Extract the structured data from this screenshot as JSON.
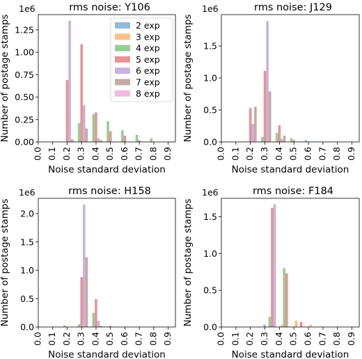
{
  "chart_data": [
    {
      "type": "bar",
      "title": "rms noise: Y106",
      "xlabel": "Noise standard deviation",
      "ylabel": "Number of postage stamps",
      "offset_label": "1e6",
      "xlim": [
        0.0,
        0.95
      ],
      "ylim": [
        0,
        1.42
      ],
      "xticks": [
        "0.0",
        "0.1",
        "0.2",
        "0.3",
        "0.4",
        "0.5",
        "0.6",
        "0.7",
        "0.8",
        "0.9"
      ],
      "yticks": [
        "0.00",
        "0.25",
        "0.50",
        "0.75",
        "1.00",
        "1.25"
      ],
      "legend_position": "upper right",
      "series": [
        {
          "name": "2 exp",
          "color": "#1f77b4",
          "bars": []
        },
        {
          "name": "3 exp",
          "color": "#ff7f0e",
          "bars": []
        },
        {
          "name": "4 exp",
          "color": "#2ca02c",
          "bars": [
            [
              0.3,
              0.21
            ],
            [
              0.4,
              0.31
            ],
            [
              0.5,
              0.23
            ],
            [
              0.6,
              0.13
            ],
            [
              0.7,
              0.08
            ],
            [
              0.8,
              0.04
            ]
          ]
        },
        {
          "name": "5 exp",
          "color": "#d62728",
          "bars": [
            [
              0.2,
              0.69
            ],
            [
              0.3,
              1.09
            ],
            [
              0.4,
              0.33
            ],
            [
              0.5,
              0.12
            ],
            [
              0.6,
              0.07
            ],
            [
              0.7,
              0.02
            ]
          ]
        },
        {
          "name": "6 exp",
          "color": "#9467bd",
          "bars": [
            [
              0.2,
              1.35
            ],
            [
              0.3,
              0.41
            ],
            [
              0.4,
              0.04
            ]
          ]
        },
        {
          "name": "7 exp",
          "color": "#8c564b",
          "bars": [
            [
              0.2,
              0.03
            ],
            [
              0.3,
              0.15
            ],
            [
              0.4,
              0.02
            ]
          ]
        },
        {
          "name": "8 exp",
          "color": "#e377c2",
          "bars": []
        }
      ]
    },
    {
      "type": "bar",
      "title": "rms noise: J129",
      "xlabel": "Noise standard deviation",
      "ylabel": "Number of postage stamps",
      "offset_label": "1e6",
      "xlim": [
        0.0,
        0.95
      ],
      "ylim": [
        0,
        1.99
      ],
      "xticks": [
        "0.0",
        "0.1",
        "0.2",
        "0.3",
        "0.4",
        "0.5",
        "0.6",
        "0.7",
        "0.8",
        "0.9"
      ],
      "yticks": [
        "0.0",
        "0.5",
        "1.0",
        "1.5"
      ],
      "series": [
        {
          "name": "2 exp",
          "color": "#1f77b4",
          "bars": []
        },
        {
          "name": "3 exp",
          "color": "#ff7f0e",
          "bars": []
        },
        {
          "name": "4 exp",
          "color": "#2ca02c",
          "bars": [
            [
              0.3,
              0.08
            ],
            [
              0.4,
              0.14
            ],
            [
              0.5,
              0.06
            ],
            [
              0.6,
              0.03
            ]
          ]
        },
        {
          "name": "5 exp",
          "color": "#d62728",
          "bars": [
            [
              0.2,
              0.53
            ],
            [
              0.3,
              1.11
            ],
            [
              0.4,
              0.26
            ],
            [
              0.5,
              0.03
            ]
          ]
        },
        {
          "name": "6 exp",
          "color": "#9467bd",
          "bars": [
            [
              0.2,
              0.28
            ],
            [
              0.3,
              1.89
            ],
            [
              0.4,
              0.05
            ]
          ]
        },
        {
          "name": "7 exp",
          "color": "#8c564b",
          "bars": [
            [
              0.2,
              0.55
            ],
            [
              0.3,
              0.79
            ],
            [
              0.4,
              0.1
            ]
          ]
        },
        {
          "name": "8 exp",
          "color": "#e377c2",
          "bars": []
        }
      ]
    },
    {
      "type": "bar",
      "title": "rms noise: H158",
      "xlabel": "Noise standard deviation",
      "ylabel": "Number of postage stamps",
      "offset_label": "1e6",
      "xlim": [
        0.0,
        0.95
      ],
      "ylim": [
        0,
        2.27
      ],
      "xticks": [
        "0.0",
        "0.1",
        "0.2",
        "0.3",
        "0.4",
        "0.5",
        "0.6",
        "0.7",
        "0.8",
        "0.9"
      ],
      "yticks": [
        "0.0",
        "0.5",
        "1.0",
        "1.5",
        "2.0"
      ],
      "series": [
        {
          "name": "2 exp",
          "color": "#1f77b4",
          "bars": []
        },
        {
          "name": "3 exp",
          "color": "#ff7f0e",
          "bars": []
        },
        {
          "name": "4 exp",
          "color": "#2ca02c",
          "bars": [
            [
              0.2,
              0.03
            ],
            [
              0.3,
              0.05
            ],
            [
              0.4,
              0.25
            ]
          ]
        },
        {
          "name": "5 exp",
          "color": "#d62728",
          "bars": [
            [
              0.3,
              0.88
            ],
            [
              0.4,
              0.49
            ],
            [
              0.5,
              0.02
            ]
          ]
        },
        {
          "name": "6 exp",
          "color": "#9467bd",
          "bars": [
            [
              0.3,
              2.16
            ],
            [
              0.4,
              0.11
            ]
          ]
        },
        {
          "name": "7 exp",
          "color": "#8c564b",
          "bars": [
            [
              0.3,
              1.23
            ],
            [
              0.4,
              0.02
            ]
          ]
        },
        {
          "name": "8 exp",
          "color": "#e377c2",
          "bars": []
        }
      ]
    },
    {
      "type": "bar",
      "title": "rms noise: F184",
      "xlabel": "Noise standard deviation",
      "ylabel": "Number of postage stamps",
      "offset_label": "1e6",
      "xlim": [
        0.0,
        0.95
      ],
      "ylim": [
        0,
        1.75
      ],
      "xticks": [
        "0.0",
        "0.1",
        "0.2",
        "0.3",
        "0.4",
        "0.5",
        "0.6",
        "0.7",
        "0.8",
        "0.9"
      ],
      "yticks": [
        "0.0",
        "0.5",
        "1.0",
        "1.5"
      ],
      "series": [
        {
          "name": "2 exp",
          "color": "#1f77b4",
          "bars": [
            [
              0.35,
              0.03
            ]
          ]
        },
        {
          "name": "3 exp",
          "color": "#ff7f0e",
          "bars": [
            [
              0.45,
              0.03
            ],
            [
              0.55,
              0.09
            ],
            [
              0.65,
              0.03
            ]
          ]
        },
        {
          "name": "4 exp",
          "color": "#2ca02c",
          "bars": [
            [
              0.35,
              0.14
            ],
            [
              0.45,
              0.8
            ]
          ]
        },
        {
          "name": "5 exp",
          "color": "#d62728",
          "bars": [
            [
              0.35,
              1.62
            ],
            [
              0.45,
              0.73
            ],
            [
              0.55,
              0.07
            ]
          ]
        },
        {
          "name": "6 exp",
          "color": "#9467bd",
          "bars": [
            [
              0.35,
              1.67
            ]
          ]
        },
        {
          "name": "7 exp",
          "color": "#8c564b",
          "bars": []
        },
        {
          "name": "8 exp",
          "color": "#e377c2",
          "bars": []
        }
      ]
    }
  ]
}
